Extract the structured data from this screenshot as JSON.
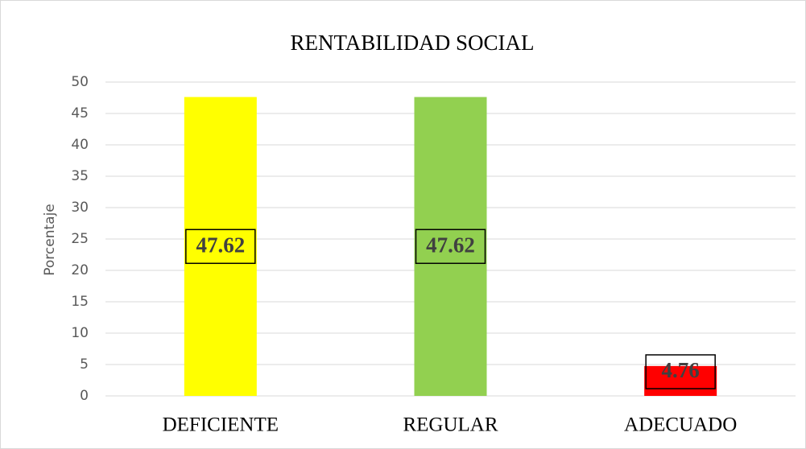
{
  "chart_data": {
    "type": "bar",
    "title": "RENTABILIDAD SOCIAL",
    "y_label": "Porcentaje",
    "categories": [
      "DEFICIENTE",
      "REGULAR",
      "ADECUADO"
    ],
    "values": [
      47.62,
      47.62,
      4.76
    ],
    "colors": [
      "#ffff00",
      "#92d050",
      "#ff0000"
    ],
    "ylim": [
      0,
      50
    ],
    "yticks": [
      0,
      5,
      10,
      15,
      20,
      25,
      30,
      35,
      40,
      45,
      50
    ],
    "grid": true
  }
}
